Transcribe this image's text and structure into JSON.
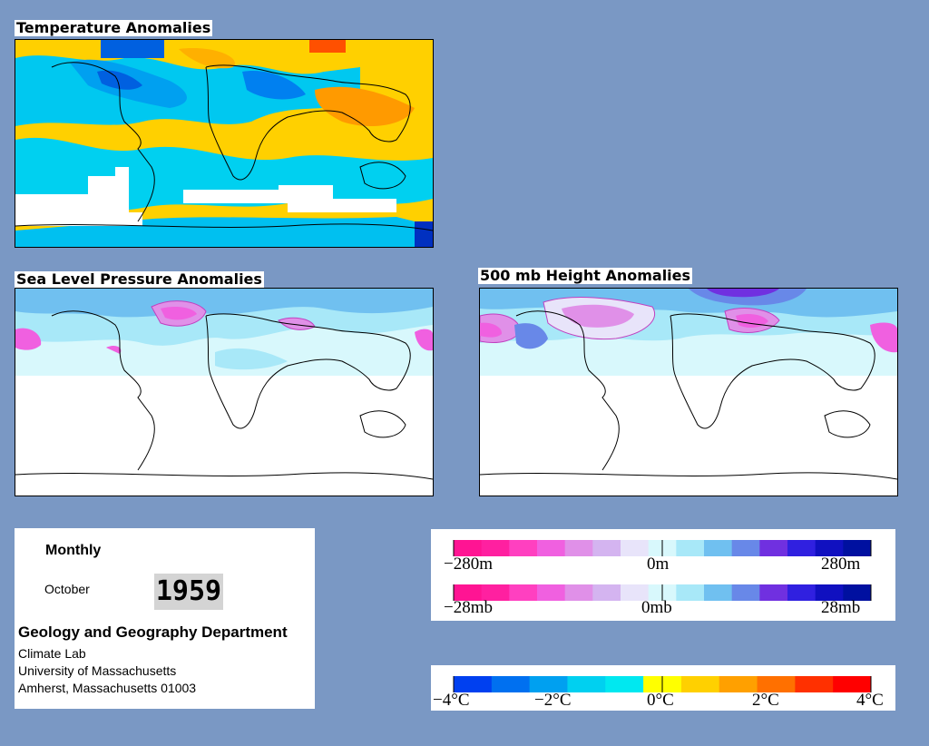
{
  "panels": {
    "temperature": {
      "title": "Temperature Anomalies"
    },
    "slp": {
      "title": "Sea Level Pressure Anomalies"
    },
    "height": {
      "title": "500 mb Height Anomalies"
    }
  },
  "info": {
    "period": "Monthly",
    "month": "October",
    "year": "1959",
    "department": "Geology and Geography Department",
    "address": [
      "Climate Lab",
      "University of Massachusetts",
      "Amherst, Massachusetts 01003"
    ]
  },
  "legends": {
    "height": {
      "labels": [
        "−280m",
        "0m",
        "280m"
      ]
    },
    "pressure": {
      "labels": [
        "−28mb",
        "0mb",
        "28mb"
      ]
    },
    "temp": {
      "labels": [
        "−4°C",
        "−2°C",
        "0°C",
        "2°C",
        "4°C"
      ]
    }
  },
  "colors": {
    "background": "#7a98c4",
    "anomaly_scale": [
      "#ff1493",
      "#ff20a0",
      "#ff40c0",
      "#f060e0",
      "#e090e8",
      "#d4b4f0",
      "#e8e4fa",
      "#d8f8fc",
      "#a8e8f8",
      "#70c0f0",
      "#6888e8",
      "#7030e0",
      "#3020e0",
      "#1010c0",
      "#0010a0"
    ],
    "temp_scale": [
      "#0040f0",
      "#0070f0",
      "#00a0f0",
      "#00d0f0",
      "#00e8f0",
      "#ffff00",
      "#ffd000",
      "#ffa000",
      "#ff7000",
      "#ff3000",
      "#ff0000"
    ]
  }
}
